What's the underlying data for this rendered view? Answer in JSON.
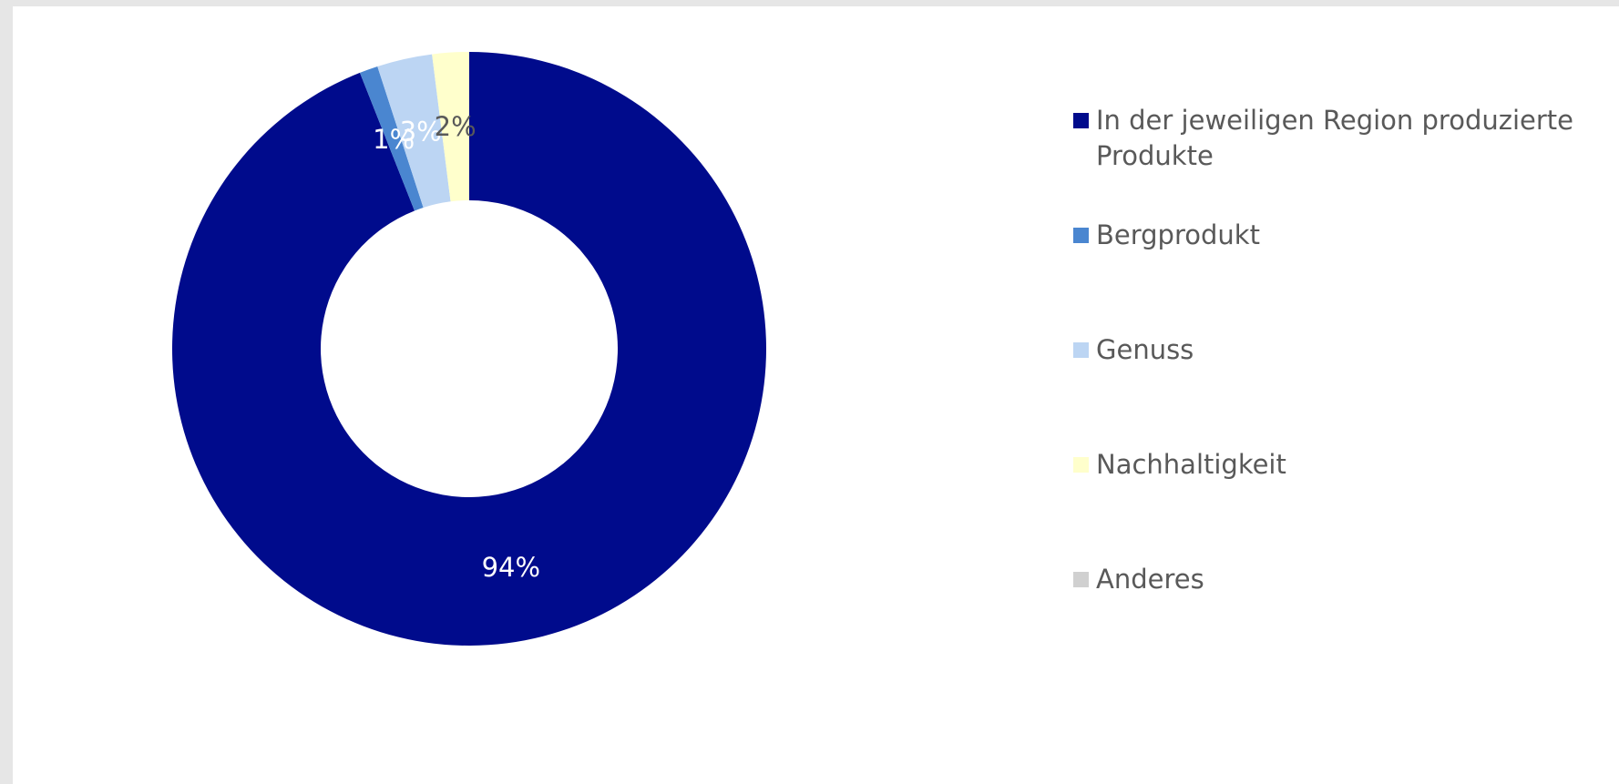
{
  "chart_data": {
    "type": "donut",
    "series": [
      {
        "name": "",
        "slices": [
          {
            "label": "In der jeweiligen Region produzierte Produkte",
            "value": 94,
            "value_label": "94%",
            "color": "#000b8c",
            "label_color": "#ffffff"
          },
          {
            "label": "Bergprodukt",
            "value": 1,
            "value_label": "1%",
            "color": "#4a86d0",
            "label_color": "#ffffff"
          },
          {
            "label": "Genuss",
            "value": 3,
            "value_label": "3%",
            "color": "#bcd5f3",
            "label_color": "#ffffff"
          },
          {
            "label": "Nachhaltigkeit",
            "value": 2,
            "value_label": "2%",
            "color": "#ffffcc",
            "label_color": "#595959"
          },
          {
            "label": "Anderes",
            "value": 0,
            "value_label": "",
            "color": "#d0d0d0",
            "label_color": "#595959"
          }
        ]
      }
    ],
    "legend_position": "right",
    "title": ""
  }
}
